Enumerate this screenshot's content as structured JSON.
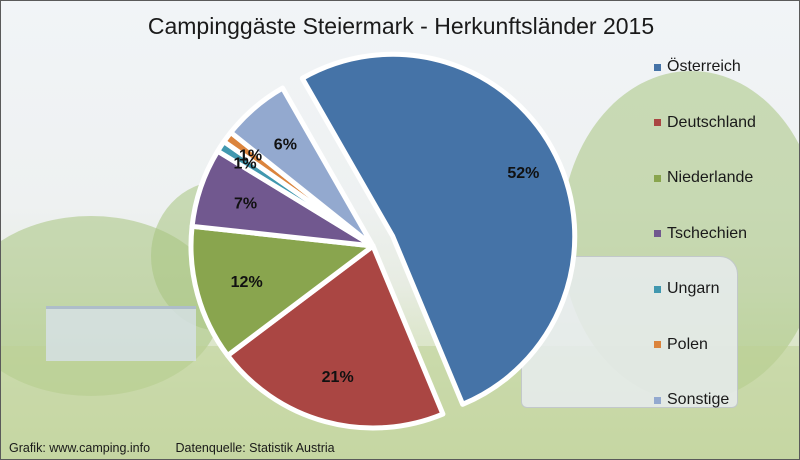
{
  "chart_data": {
    "type": "pie",
    "title": "Campinggäste Steiermark - Herkunftsländer 2015",
    "legend_position": "right",
    "exploded": true,
    "slices": [
      {
        "name": "Österreich",
        "value": 52,
        "label": "52%",
        "color": "#4573a7"
      },
      {
        "name": "Deutschland",
        "value": 21,
        "label": "21%",
        "color": "#aa4643"
      },
      {
        "name": "Niederlande",
        "value": 12,
        "label": "12%",
        "color": "#89a54e"
      },
      {
        "name": "Tschechien",
        "value": 7,
        "label": "7%",
        "color": "#71588f"
      },
      {
        "name": "Ungarn",
        "value": 1,
        "label": "1%",
        "color": "#4198af"
      },
      {
        "name": "Polen",
        "value": 1,
        "label": "1%",
        "color": "#db843d"
      },
      {
        "name": "Sonstige",
        "value": 6,
        "label": "6%",
        "color": "#93a9cf"
      }
    ]
  },
  "footer": {
    "credit": "Grafik: www.camping.info",
    "source": "Datenquelle: Statistik Austria"
  }
}
